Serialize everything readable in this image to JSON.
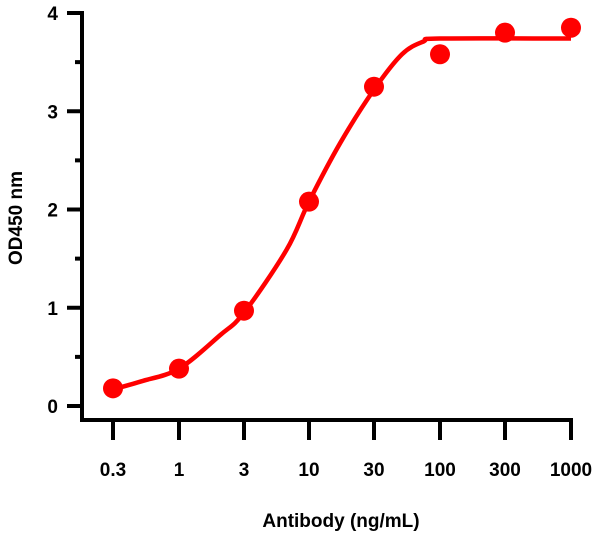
{
  "chart_data": {
    "type": "scatter",
    "title": "",
    "xlabel": "Antibody (ng/mL)",
    "ylabel": "OD450 nm",
    "x_scale": "log",
    "x_ticks": [
      0.3,
      1,
      3,
      10,
      30,
      100,
      300,
      1000
    ],
    "x_tick_labels": [
      "0.3",
      "1",
      "3",
      "10",
      "30",
      "100",
      "300",
      "1000"
    ],
    "y_ticks": [
      0,
      1,
      2,
      3,
      4
    ],
    "y_tick_labels": [
      "0",
      "1",
      "2",
      "3",
      "4"
    ],
    "ylim": [
      0,
      4
    ],
    "grid": false,
    "color": "#ff0000",
    "points": {
      "x": [
        0.3,
        1,
        3,
        10,
        30,
        100,
        300,
        1000
      ],
      "y": [
        0.18,
        0.38,
        0.97,
        2.08,
        3.25,
        3.58,
        3.8,
        3.85
      ]
    },
    "fit_curve": {
      "x": [
        0.3,
        0.5,
        1,
        2,
        3,
        6.6,
        10,
        17,
        30,
        50,
        74,
        100,
        1000
      ],
      "y": [
        0.17,
        0.25,
        0.38,
        0.72,
        0.95,
        1.59,
        2.08,
        2.68,
        3.22,
        3.58,
        3.71,
        3.74,
        3.74
      ]
    }
  }
}
